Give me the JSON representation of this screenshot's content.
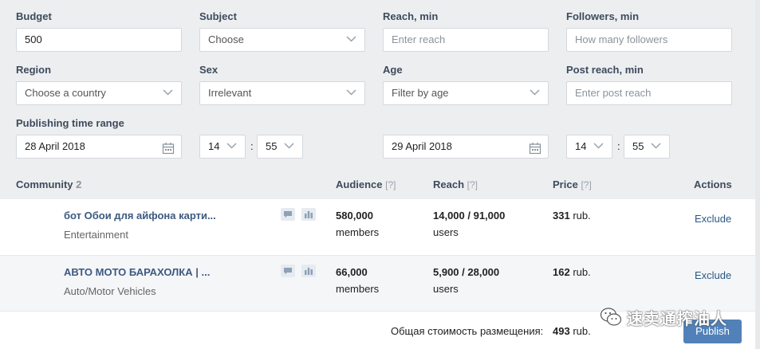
{
  "filters": {
    "budget": {
      "label": "Budget",
      "value": "500"
    },
    "subject": {
      "label": "Subject",
      "value": "Choose"
    },
    "reach_min": {
      "label": "Reach, min",
      "placeholder": "Enter reach"
    },
    "followers_min": {
      "label": "Followers, min",
      "placeholder": "How many followers"
    },
    "region": {
      "label": "Region",
      "value": "Choose a country"
    },
    "sex": {
      "label": "Sex",
      "value": "Irrelevant"
    },
    "age": {
      "label": "Age",
      "value": "Filter by age"
    },
    "post_reach_min": {
      "label": "Post reach, min",
      "placeholder": "Enter post reach"
    },
    "time_range": {
      "label": "Publishing time range",
      "start_date": "28 April 2018",
      "start_hour": "14",
      "start_minute": "55",
      "end_date": "29 April 2018",
      "end_hour": "14",
      "end_minute": "55",
      "separator": ":"
    }
  },
  "table": {
    "headers": {
      "community": "Community",
      "community_count": "2",
      "audience": "Audience",
      "reach": "Reach",
      "price": "Price",
      "help": "[?]",
      "actions": "Actions"
    },
    "rows": [
      {
        "name": "бот Обои для айфона карти...",
        "category": "Entertainment",
        "audience": "580,000",
        "audience_unit": "members",
        "reach": "14,000 / 91,000",
        "reach_unit": "users",
        "price": "331",
        "price_unit": "rub.",
        "action": "Exclude"
      },
      {
        "name": "АВТО МОТО БАРАХОЛКА | ...",
        "category": "Auto/Motor Vehicles",
        "audience": "66,000",
        "audience_unit": "members",
        "reach": "5,900 / 28,000",
        "reach_unit": "users",
        "price": "162",
        "price_unit": "rub.",
        "action": "Exclude"
      }
    ]
  },
  "footer": {
    "total_label": "Общая стоимость размещения:",
    "total_value": "493",
    "total_unit": "rub.",
    "publish_label": "Publish"
  },
  "watermark": {
    "text": "速卖通搾油人"
  },
  "colors": {
    "accent": "#5181b8",
    "link": "#2a5885",
    "panel_bg": "#edeef0",
    "label": "#3d4b5c"
  }
}
